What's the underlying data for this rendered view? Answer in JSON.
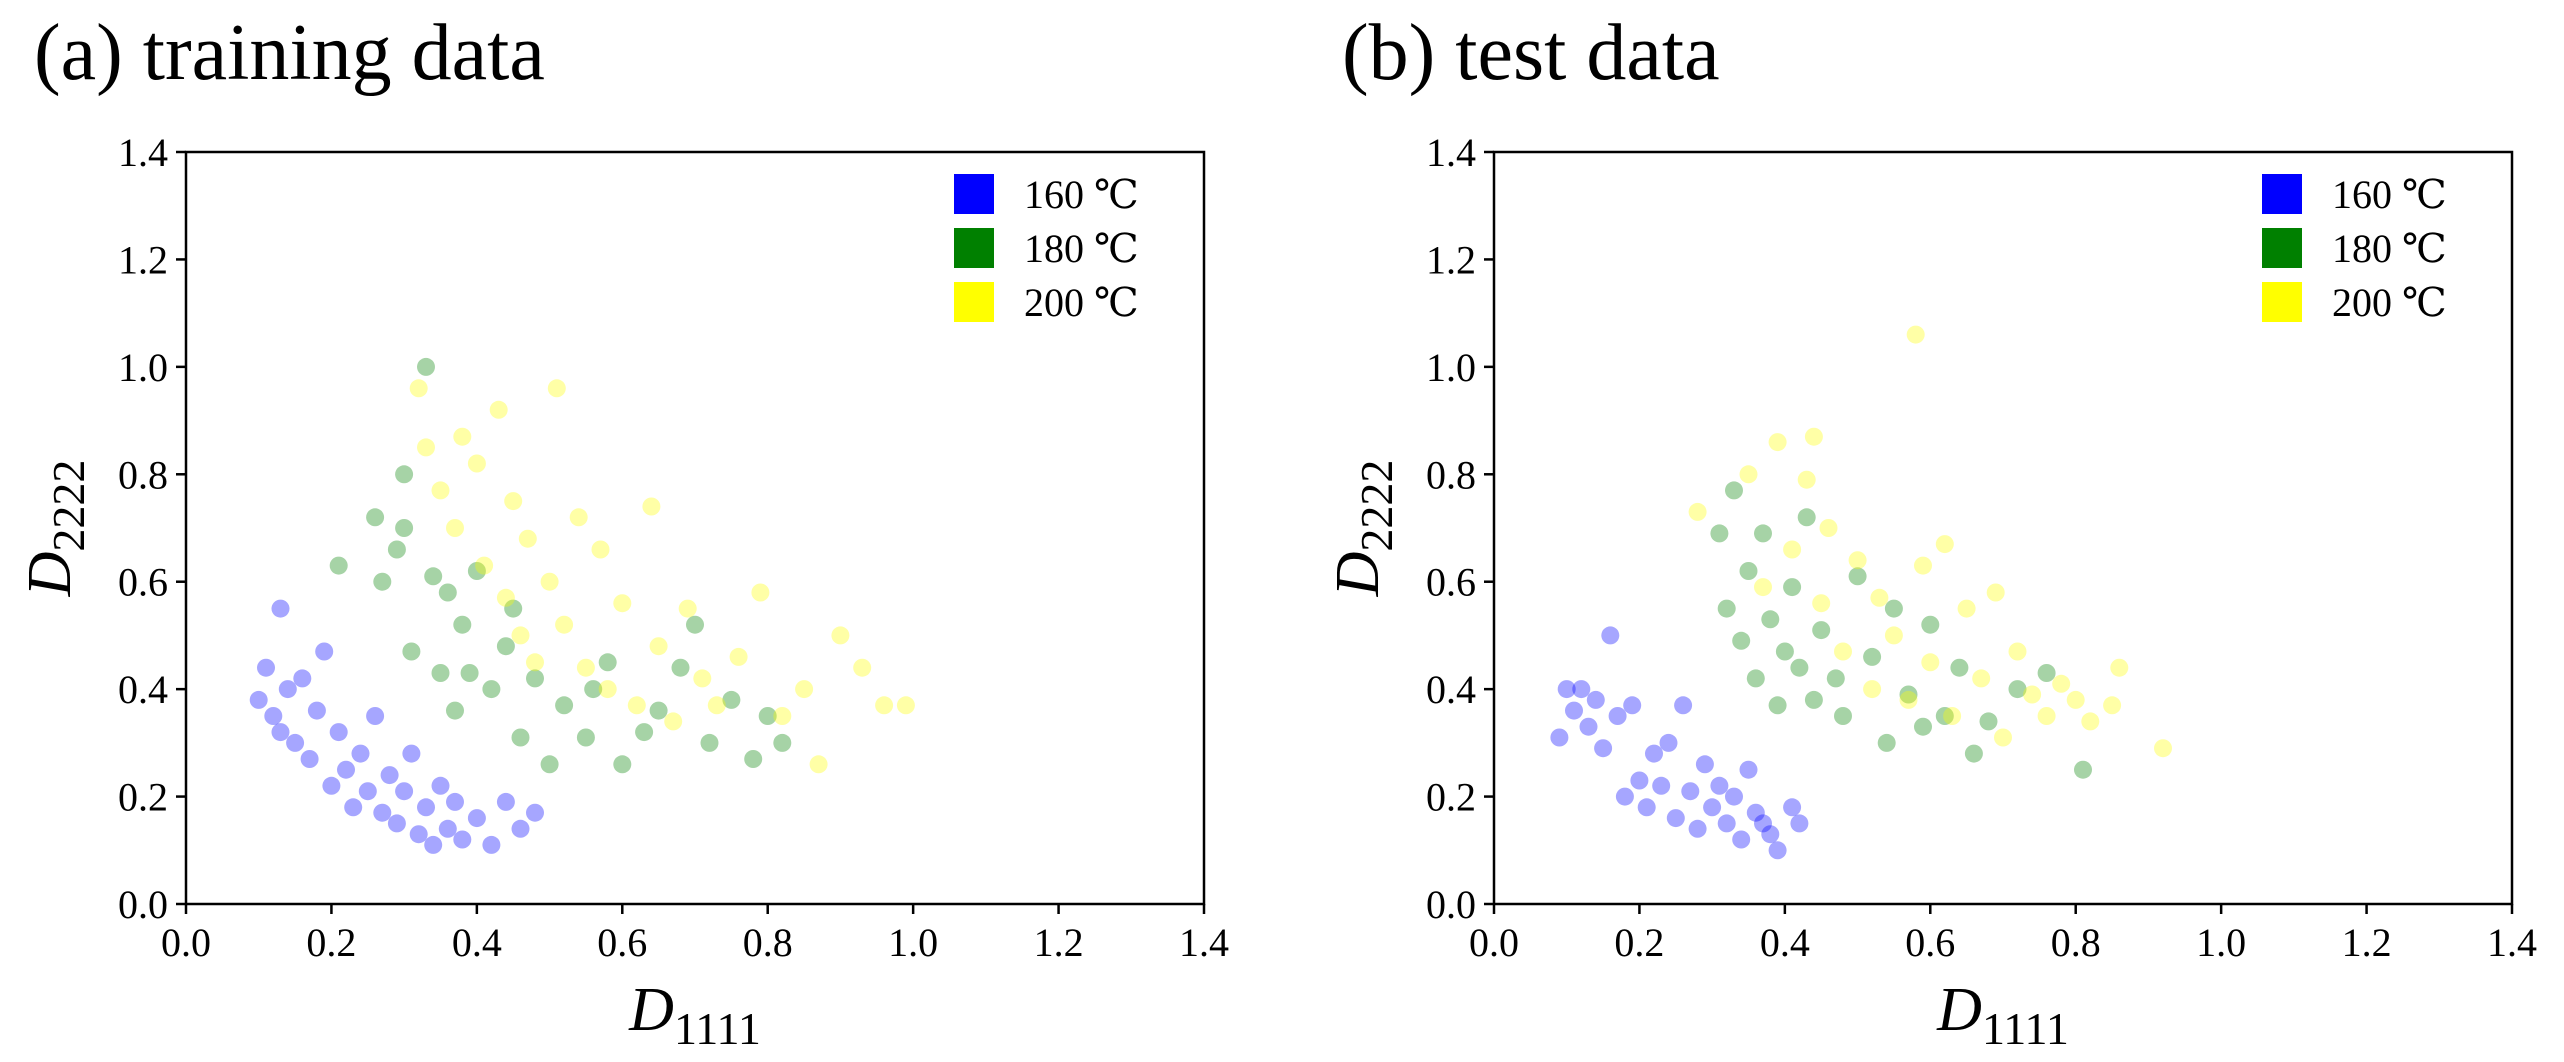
{
  "panels": [
    {
      "label": "(a) training data",
      "chart_data": {
        "type": "scatter",
        "xlabel": "D",
        "xlabel_sub": "1111",
        "ylabel": "D",
        "ylabel_sub": "2222",
        "xlim": [
          0.0,
          1.4
        ],
        "ylim": [
          0.0,
          1.4
        ],
        "xticks": [
          "0.0",
          "0.2",
          "0.4",
          "0.6",
          "0.8",
          "1.0",
          "1.2",
          "1.4"
        ],
        "yticks": [
          "0.0",
          "0.2",
          "0.4",
          "0.6",
          "0.8",
          "1.0",
          "1.2",
          "1.4"
        ],
        "grid": false,
        "legend_position": "top-right",
        "series": [
          {
            "name": "160 ℃",
            "color": "#0000ff",
            "points": [
              [
                0.1,
                0.38
              ],
              [
                0.11,
                0.44
              ],
              [
                0.12,
                0.35
              ],
              [
                0.13,
                0.55
              ],
              [
                0.13,
                0.32
              ],
              [
                0.14,
                0.4
              ],
              [
                0.15,
                0.3
              ],
              [
                0.16,
                0.42
              ],
              [
                0.17,
                0.27
              ],
              [
                0.18,
                0.36
              ],
              [
                0.19,
                0.47
              ],
              [
                0.2,
                0.22
              ],
              [
                0.21,
                0.32
              ],
              [
                0.22,
                0.25
              ],
              [
                0.23,
                0.18
              ],
              [
                0.24,
                0.28
              ],
              [
                0.25,
                0.21
              ],
              [
                0.26,
                0.35
              ],
              [
                0.27,
                0.17
              ],
              [
                0.28,
                0.24
              ],
              [
                0.29,
                0.15
              ],
              [
                0.3,
                0.21
              ],
              [
                0.31,
                0.28
              ],
              [
                0.32,
                0.13
              ],
              [
                0.33,
                0.18
              ],
              [
                0.34,
                0.11
              ],
              [
                0.35,
                0.22
              ],
              [
                0.36,
                0.14
              ],
              [
                0.37,
                0.19
              ],
              [
                0.38,
                0.12
              ],
              [
                0.4,
                0.16
              ],
              [
                0.42,
                0.11
              ],
              [
                0.44,
                0.19
              ],
              [
                0.46,
                0.14
              ],
              [
                0.48,
                0.17
              ]
            ]
          },
          {
            "name": "180 ℃",
            "color": "#008000",
            "points": [
              [
                0.21,
                0.63
              ],
              [
                0.26,
                0.72
              ],
              [
                0.27,
                0.6
              ],
              [
                0.29,
                0.66
              ],
              [
                0.3,
                0.8
              ],
              [
                0.31,
                0.47
              ],
              [
                0.33,
                1.0
              ],
              [
                0.34,
                0.61
              ],
              [
                0.35,
                0.43
              ],
              [
                0.37,
                0.36
              ],
              [
                0.38,
                0.52
              ],
              [
                0.39,
                0.43
              ],
              [
                0.4,
                0.62
              ],
              [
                0.42,
                0.4
              ],
              [
                0.44,
                0.48
              ],
              [
                0.46,
                0.31
              ],
              [
                0.48,
                0.42
              ],
              [
                0.5,
                0.26
              ],
              [
                0.52,
                0.37
              ],
              [
                0.55,
                0.31
              ],
              [
                0.58,
                0.45
              ],
              [
                0.6,
                0.26
              ],
              [
                0.63,
                0.32
              ],
              [
                0.65,
                0.36
              ],
              [
                0.68,
                0.44
              ],
              [
                0.7,
                0.52
              ],
              [
                0.72,
                0.3
              ],
              [
                0.75,
                0.38
              ],
              [
                0.78,
                0.27
              ],
              [
                0.8,
                0.35
              ],
              [
                0.82,
                0.3
              ],
              [
                0.3,
                0.7
              ],
              [
                0.36,
                0.58
              ],
              [
                0.45,
                0.55
              ],
              [
                0.56,
                0.4
              ]
            ]
          },
          {
            "name": "200 ℃",
            "color": "#ffff00",
            "points": [
              [
                0.32,
                0.96
              ],
              [
                0.33,
                0.85
              ],
              [
                0.35,
                0.77
              ],
              [
                0.37,
                0.7
              ],
              [
                0.38,
                0.87
              ],
              [
                0.4,
                0.82
              ],
              [
                0.41,
                0.63
              ],
              [
                0.43,
                0.92
              ],
              [
                0.44,
                0.57
              ],
              [
                0.45,
                0.75
              ],
              [
                0.46,
                0.5
              ],
              [
                0.47,
                0.68
              ],
              [
                0.48,
                0.45
              ],
              [
                0.5,
                0.6
              ],
              [
                0.51,
                0.96
              ],
              [
                0.52,
                0.52
              ],
              [
                0.54,
                0.72
              ],
              [
                0.55,
                0.44
              ],
              [
                0.57,
                0.66
              ],
              [
                0.58,
                0.4
              ],
              [
                0.6,
                0.56
              ],
              [
                0.62,
                0.37
              ],
              [
                0.64,
                0.74
              ],
              [
                0.65,
                0.48
              ],
              [
                0.67,
                0.34
              ],
              [
                0.69,
                0.55
              ],
              [
                0.71,
                0.42
              ],
              [
                0.73,
                0.37
              ],
              [
                0.76,
                0.46
              ],
              [
                0.79,
                0.58
              ],
              [
                0.82,
                0.35
              ],
              [
                0.85,
                0.4
              ],
              [
                0.87,
                0.26
              ],
              [
                0.9,
                0.5
              ],
              [
                0.93,
                0.44
              ],
              [
                0.96,
                0.37
              ],
              [
                0.99,
                0.37
              ]
            ]
          }
        ]
      }
    },
    {
      "label": "(b) test data",
      "chart_data": {
        "type": "scatter",
        "xlabel": "D",
        "xlabel_sub": "1111",
        "ylabel": "D",
        "ylabel_sub": "2222",
        "xlim": [
          0.0,
          1.4
        ],
        "ylim": [
          0.0,
          1.4
        ],
        "xticks": [
          "0.0",
          "0.2",
          "0.4",
          "0.6",
          "0.8",
          "1.0",
          "1.2",
          "1.4"
        ],
        "yticks": [
          "0.0",
          "0.2",
          "0.4",
          "0.6",
          "0.8",
          "1.0",
          "1.2",
          "1.4"
        ],
        "grid": false,
        "legend_position": "top-right",
        "series": [
          {
            "name": "160 ℃",
            "color": "#0000ff",
            "points": [
              [
                0.09,
                0.31
              ],
              [
                0.1,
                0.4
              ],
              [
                0.11,
                0.36
              ],
              [
                0.12,
                0.4
              ],
              [
                0.13,
                0.33
              ],
              [
                0.14,
                0.38
              ],
              [
                0.15,
                0.29
              ],
              [
                0.16,
                0.5
              ],
              [
                0.17,
                0.35
              ],
              [
                0.18,
                0.2
              ],
              [
                0.19,
                0.37
              ],
              [
                0.2,
                0.23
              ],
              [
                0.21,
                0.18
              ],
              [
                0.22,
                0.28
              ],
              [
                0.23,
                0.22
              ],
              [
                0.24,
                0.3
              ],
              [
                0.25,
                0.16
              ],
              [
                0.26,
                0.37
              ],
              [
                0.27,
                0.21
              ],
              [
                0.28,
                0.14
              ],
              [
                0.29,
                0.26
              ],
              [
                0.3,
                0.18
              ],
              [
                0.31,
                0.22
              ],
              [
                0.32,
                0.15
              ],
              [
                0.33,
                0.2
              ],
              [
                0.34,
                0.12
              ],
              [
                0.35,
                0.25
              ],
              [
                0.36,
                0.17
              ],
              [
                0.37,
                0.15
              ],
              [
                0.38,
                0.13
              ],
              [
                0.39,
                0.1
              ],
              [
                0.41,
                0.18
              ],
              [
                0.42,
                0.15
              ]
            ]
          },
          {
            "name": "180 ℃",
            "color": "#008000",
            "points": [
              [
                0.31,
                0.69
              ],
              [
                0.32,
                0.55
              ],
              [
                0.33,
                0.77
              ],
              [
                0.34,
                0.49
              ],
              [
                0.35,
                0.62
              ],
              [
                0.36,
                0.42
              ],
              [
                0.37,
                0.69
              ],
              [
                0.38,
                0.53
              ],
              [
                0.39,
                0.37
              ],
              [
                0.4,
                0.47
              ],
              [
                0.41,
                0.59
              ],
              [
                0.42,
                0.44
              ],
              [
                0.43,
                0.72
              ],
              [
                0.44,
                0.38
              ],
              [
                0.45,
                0.51
              ],
              [
                0.47,
                0.42
              ],
              [
                0.48,
                0.35
              ],
              [
                0.5,
                0.61
              ],
              [
                0.52,
                0.46
              ],
              [
                0.54,
                0.3
              ],
              [
                0.55,
                0.55
              ],
              [
                0.57,
                0.39
              ],
              [
                0.59,
                0.33
              ],
              [
                0.6,
                0.52
              ],
              [
                0.62,
                0.35
              ],
              [
                0.64,
                0.44
              ],
              [
                0.66,
                0.28
              ],
              [
                0.68,
                0.34
              ],
              [
                0.72,
                0.4
              ],
              [
                0.76,
                0.43
              ],
              [
                0.81,
                0.25
              ]
            ]
          },
          {
            "name": "200 ℃",
            "color": "#ffff00",
            "points": [
              [
                0.28,
                0.73
              ],
              [
                0.35,
                0.8
              ],
              [
                0.37,
                0.59
              ],
              [
                0.39,
                0.86
              ],
              [
                0.41,
                0.66
              ],
              [
                0.43,
                0.79
              ],
              [
                0.44,
                0.87
              ],
              [
                0.45,
                0.56
              ],
              [
                0.46,
                0.7
              ],
              [
                0.48,
                0.47
              ],
              [
                0.5,
                0.64
              ],
              [
                0.52,
                0.4
              ],
              [
                0.53,
                0.57
              ],
              [
                0.55,
                0.5
              ],
              [
                0.57,
                0.38
              ],
              [
                0.58,
                1.06
              ],
              [
                0.59,
                0.63
              ],
              [
                0.6,
                0.45
              ],
              [
                0.62,
                0.67
              ],
              [
                0.63,
                0.35
              ],
              [
                0.65,
                0.55
              ],
              [
                0.67,
                0.42
              ],
              [
                0.69,
                0.58
              ],
              [
                0.7,
                0.31
              ],
              [
                0.72,
                0.47
              ],
              [
                0.74,
                0.39
              ],
              [
                0.76,
                0.35
              ],
              [
                0.78,
                0.41
              ],
              [
                0.8,
                0.38
              ],
              [
                0.82,
                0.34
              ],
              [
                0.85,
                0.37
              ],
              [
                0.86,
                0.44
              ],
              [
                0.92,
                0.29
              ]
            ]
          }
        ]
      }
    }
  ]
}
